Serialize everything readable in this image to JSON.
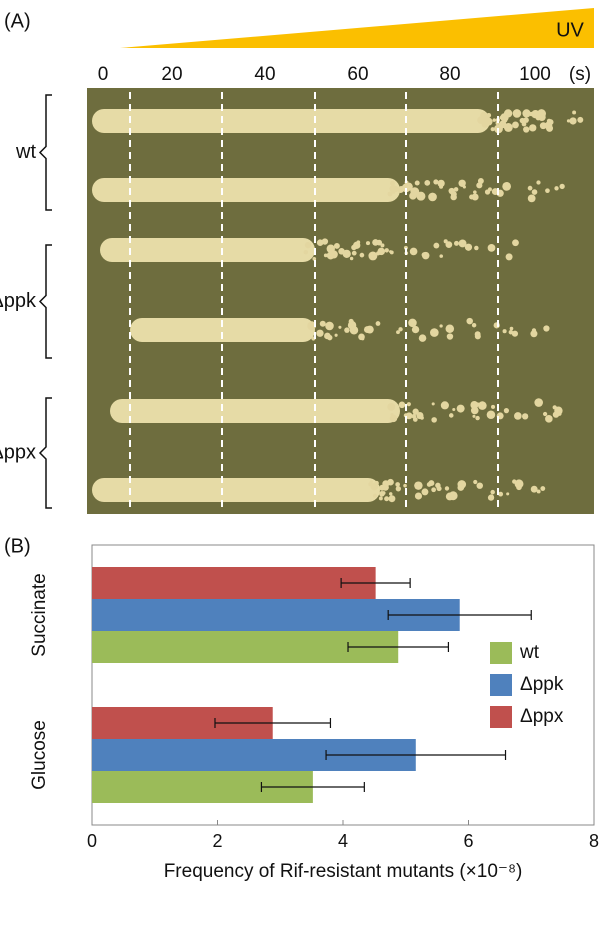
{
  "panel_a": {
    "label": "(A)",
    "uv": "UV",
    "times": [
      "0",
      "20",
      "40",
      "60",
      "80",
      "100"
    ],
    "time_unit": "(s)",
    "strains": [
      "wt",
      "Δppk",
      "Δppx"
    ]
  },
  "chart_data": {
    "type": "bar",
    "orientation": "horizontal",
    "label": "(B)",
    "categories": [
      "Succinate",
      "Glucose"
    ],
    "series": [
      {
        "name": "wt",
        "color": "#9bbb59",
        "values": [
          4.88,
          3.52
        ],
        "errors": [
          0.8,
          0.82
        ]
      },
      {
        "name": "Δppk",
        "color": "#4f81bd",
        "values": [
          5.86,
          5.16
        ],
        "errors": [
          1.14,
          1.43
        ]
      },
      {
        "name": "Δppx",
        "color": "#c0504d",
        "values": [
          4.52,
          2.88
        ],
        "errors": [
          0.55,
          0.92
        ]
      }
    ],
    "x_label": "Frequency of Rif-resistant mutants (×10⁻⁸)",
    "xlim": [
      0,
      8
    ],
    "xticks": [
      0,
      2,
      4,
      6,
      8
    ],
    "legend": "right"
  }
}
